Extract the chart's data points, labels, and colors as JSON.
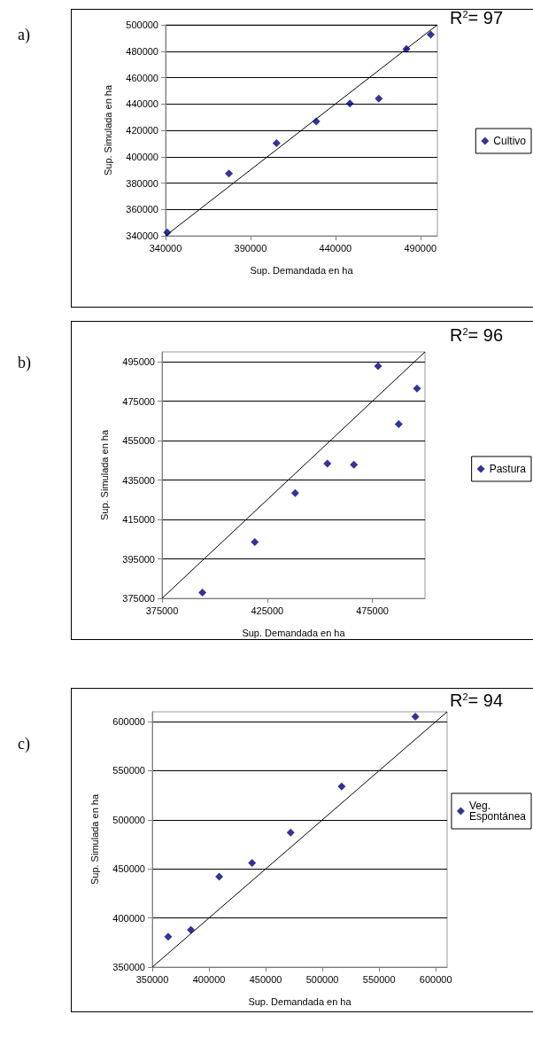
{
  "chart_data": [
    {
      "type": "scatter",
      "xlabel": "Sup. Demandada en ha",
      "ylabel": "Sup. Simulada en ha",
      "annotations": [
        "a)",
        "R$^{2}$= 97"
      ],
      "x": [
        341000,
        377300,
        405300,
        428700,
        448500,
        465500,
        481800,
        496100
      ],
      "series": [
        {
          "name": "Cultivo",
          "color": "#000080",
          "values": [
            342500,
            387200,
            410200,
            426800,
            440400,
            444000,
            481700,
            492600
          ]
        },
        {
          "type": "line",
          "color": "#000000",
          "marker": "none",
          "x": [
            340000,
            500000
          ],
          "values": [
            340000,
            500000
          ]
        }
      ],
      "xlim": [
        340000,
        500000
      ],
      "xticks": [
        340000,
        390000,
        440000,
        490000
      ],
      "ylim": [
        340000,
        500000
      ],
      "yticks": [
        340000,
        360000,
        380000,
        400000,
        420000,
        440000,
        460000,
        480000,
        500000
      ],
      "grid": "y",
      "legend": "right",
      "marker": "diamond"
    },
    {
      "type": "scatter",
      "xlabel": "Sup. Demandada en ha",
      "ylabel": "Sup. Simulada en ha",
      "annotations": [
        "b)",
        "R$^{2}$= 96"
      ],
      "x": [
        394200,
        419100,
        438300,
        453600,
        466200,
        477700,
        487500,
        496200
      ],
      "series": [
        {
          "name": "Pastura",
          "color": "#000080",
          "values": [
            377900,
            403600,
            428400,
            443400,
            442800,
            492800,
            463400,
            481400
          ]
        },
        {
          "type": "line",
          "color": "#000000",
          "marker": "none",
          "x": [
            375000,
            500000
          ],
          "values": [
            375000,
            500000
          ]
        }
      ],
      "xlim": [
        375000,
        500000
      ],
      "xticks": [
        375000,
        425000,
        475000
      ],
      "ylim": [
        375000,
        500000
      ],
      "yticks": [
        375000,
        395000,
        415000,
        435000,
        455000,
        475000,
        495000
      ],
      "grid": "y",
      "legend": "right",
      "marker": "diamond"
    },
    {
      "type": "scatter",
      "xlabel": "Sup. Demandada en ha",
      "ylabel": "Sup. Simulada en ha",
      "annotations": [
        "c)",
        "R$^{2}$= 94"
      ],
      "x": [
        364000,
        384000,
        409000,
        438000,
        472000,
        517000,
        582000
      ],
      "series": [
        {
          "name": "Veg. Espontánea",
          "color": "#000080",
          "values": [
            381000,
            388000,
            442000,
            456000,
            487000,
            534000,
            605000
          ]
        },
        {
          "type": "line",
          "color": "#000000",
          "marker": "none",
          "x": [
            350000,
            610000
          ],
          "values": [
            350000,
            610000
          ]
        }
      ],
      "xlim": [
        350000,
        610000
      ],
      "xticks": [
        350000,
        400000,
        450000,
        500000,
        550000,
        600000
      ],
      "ylim": [
        350000,
        610000
      ],
      "yticks": [
        350000,
        400000,
        450000,
        500000,
        550000,
        600000
      ],
      "grid": "y",
      "legend": "right",
      "marker": "diamond"
    }
  ]
}
